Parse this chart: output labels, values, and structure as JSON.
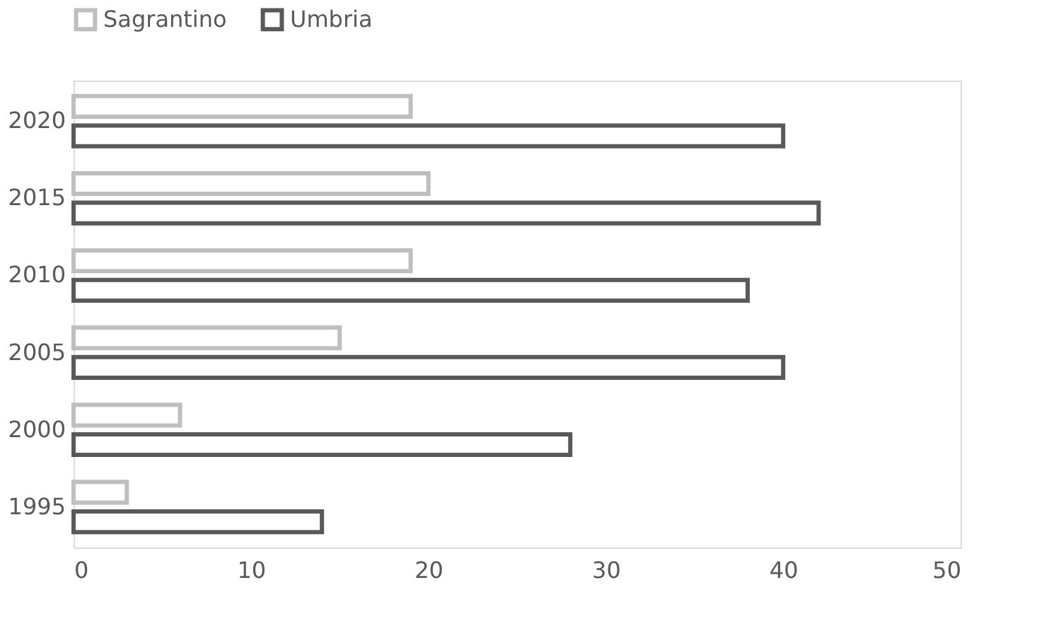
{
  "chart_data": {
    "type": "bar",
    "orientation": "horizontal",
    "categories": [
      "2020",
      "2015",
      "2010",
      "2005",
      "2000",
      "1995"
    ],
    "series": [
      {
        "name": "Sagrantino",
        "color": "#bfbfbf",
        "values": [
          19,
          20,
          19,
          15,
          6,
          3
        ]
      },
      {
        "name": "Umbria",
        "color": "#595959",
        "values": [
          40,
          42,
          38,
          40,
          28,
          14
        ]
      }
    ],
    "xlim": [
      0,
      50
    ],
    "xticks": [
      0,
      10,
      20,
      30,
      40,
      50
    ],
    "grid": false,
    "legend": "top"
  }
}
